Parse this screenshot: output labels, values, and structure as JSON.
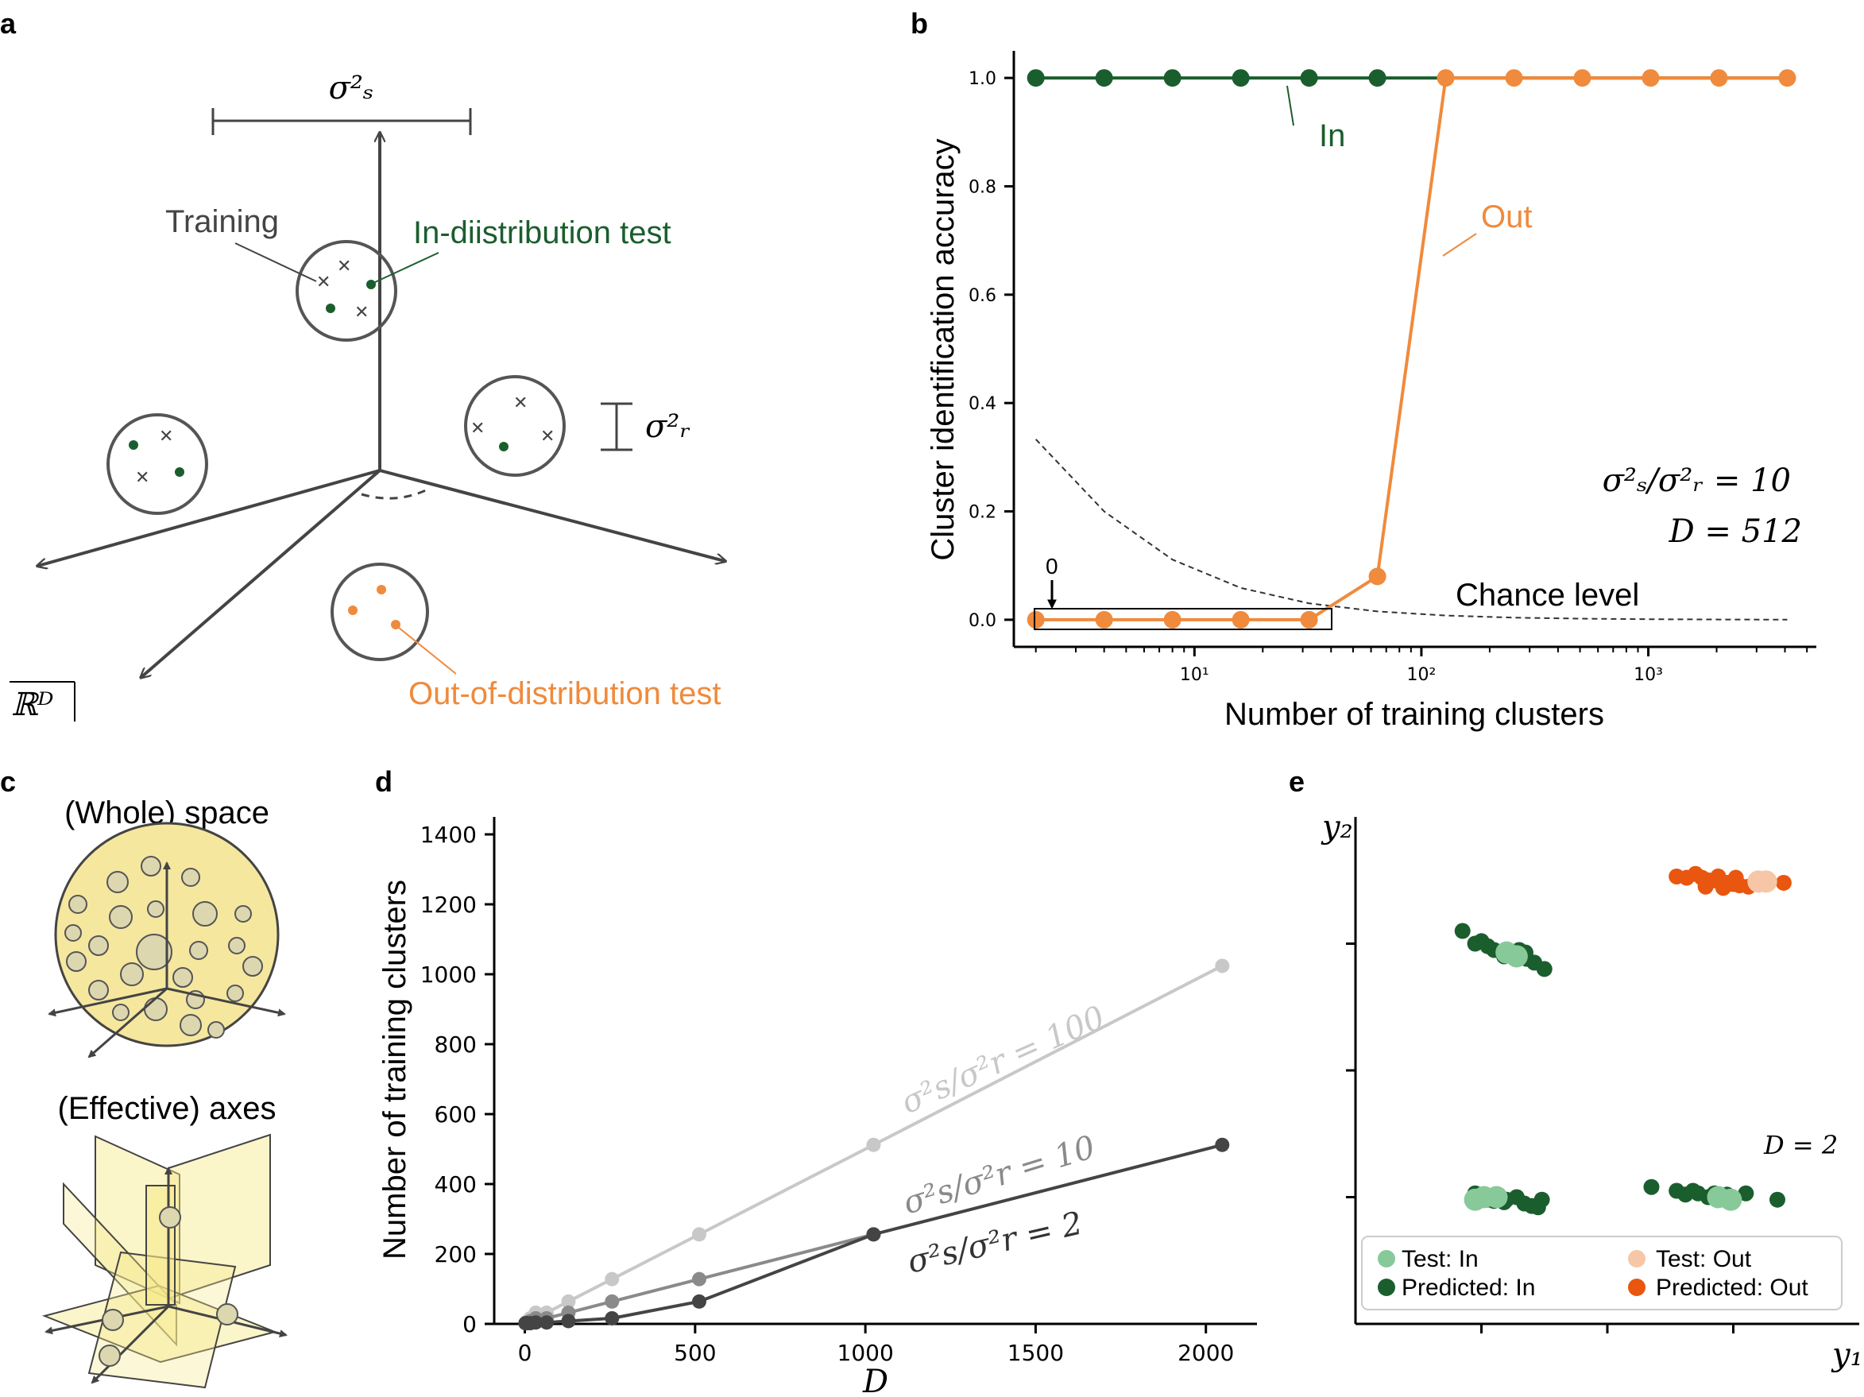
{
  "panel_labels": {
    "a": "a",
    "b": "b",
    "c": "c",
    "d": "d",
    "e": "e"
  },
  "colors": {
    "in": "#1b5e2e",
    "out": "#f08a3c",
    "out_dark": "#e8560f",
    "test_in": "#88c999",
    "test_out": "#f7c6a6",
    "axis": "#000000",
    "diagram": "#444444",
    "chance": "#333333",
    "d_light": "#c8c8c8",
    "d_mid": "#8a8a8a",
    "d_dark": "#444444",
    "sphere_fill": "#f5e79e",
    "plane_fill": "#f7e98a"
  },
  "panel_a": {
    "sigma_s": "σ²ₛ",
    "sigma_r": "σ²ᵣ",
    "training": "Training",
    "in_test": "In-diistribution test",
    "out_test": "Out-of-distribution test",
    "space": "ℝᴰ"
  },
  "chart_data": [
    {
      "id": "b",
      "type": "line",
      "xscale": "log",
      "xlabel": "Number of training clusters",
      "ylabel": "Cluster identification accuracy",
      "xlim": [
        1.6,
        5500
      ],
      "ylim": [
        -0.05,
        1.05
      ],
      "yticks": [
        "0.0",
        "0.2",
        "0.4",
        "0.6",
        "0.8",
        "1.0"
      ],
      "ytick_values": [
        0.0,
        0.2,
        0.4,
        0.6,
        0.8,
        1.0
      ],
      "xticks": [
        "10¹",
        "10²",
        "10³"
      ],
      "xtick_values": [
        10,
        100,
        1000
      ],
      "series": [
        {
          "name": "In",
          "x": [
            2,
            4,
            8,
            16,
            32,
            64
          ],
          "values": [
            1.0,
            1.0,
            1.0,
            1.0,
            1.0,
            1.0
          ],
          "line_to_x": 4096
        },
        {
          "name": "Out",
          "x": [
            2,
            4,
            8,
            16,
            32,
            64,
            128,
            256,
            512,
            1024,
            2048,
            4096
          ],
          "values": [
            0.0,
            0.0,
            0.0,
            0.0,
            0.0,
            0.08,
            1.0,
            1.0,
            1.0,
            1.0,
            1.0,
            1.0
          ]
        },
        {
          "name": "Chance level",
          "style": "dashed",
          "x": [
            2,
            4,
            8,
            16,
            32,
            64,
            128,
            256,
            512,
            1024,
            2048,
            4096
          ],
          "values": [
            0.333,
            0.2,
            0.111,
            0.0588,
            0.0303,
            0.0154,
            0.0078,
            0.0039,
            0.002,
            0.001,
            0.0005,
            0.0002
          ]
        }
      ],
      "annotations": {
        "in_label": "In",
        "out_label": "Out",
        "chance_label": "Chance level",
        "zero_label": "0",
        "ratio": "σ²ₛ/σ²ᵣ = 10",
        "dim": "D = 512"
      }
    },
    {
      "id": "d",
      "type": "line",
      "xlabel": "D",
      "ylabel": "Number of training clusters",
      "xlim": [
        -90,
        2150
      ],
      "ylim": [
        0,
        1450
      ],
      "xticks": [
        "0",
        "500",
        "1000",
        "1500",
        "2000"
      ],
      "xtick_values": [
        0,
        500,
        1000,
        1500,
        2000
      ],
      "yticks": [
        "0",
        "200",
        "400",
        "600",
        "800",
        "1000",
        "1200",
        "1400"
      ],
      "ytick_values": [
        0,
        200,
        400,
        600,
        800,
        1000,
        1200,
        1400
      ],
      "series": [
        {
          "name": "σ²s/σ²r = 100",
          "x": [
            2,
            4,
            8,
            16,
            32,
            64,
            128,
            256,
            512,
            1024,
            2048
          ],
          "values": [
            2,
            4,
            8,
            16,
            32,
            32,
            64,
            128,
            256,
            512,
            1024
          ]
        },
        {
          "name": "σ²s/σ²r = 10",
          "x": [
            2,
            4,
            8,
            16,
            32,
            64,
            128,
            256,
            512,
            1024
          ],
          "values": [
            2,
            2,
            4,
            8,
            16,
            16,
            32,
            64,
            128,
            256
          ]
        },
        {
          "name": "σ²s/σ²r = 2",
          "x": [
            2,
            4,
            8,
            16,
            32,
            64,
            128,
            256,
            512,
            1024,
            2048
          ],
          "values": [
            2,
            2,
            2,
            2,
            4,
            4,
            8,
            16,
            64,
            256,
            512
          ]
        }
      ],
      "labels": {
        "s100": "σ²s/σ²r = 100",
        "s10": "σ²s/σ²r = 10",
        "s2": "σ²s/σ²r = 2"
      }
    },
    {
      "id": "e",
      "type": "scatter",
      "xlabel": "y₁",
      "ylabel": "y₂",
      "xlim": [
        0,
        4
      ],
      "ylim": [
        0,
        4
      ],
      "annotation": "D = 2",
      "legend": {
        "test_in": "Test: In",
        "test_out": "Test: Out",
        "pred_in": "Predicted: In",
        "pred_out": "Predicted: Out"
      },
      "series": [
        {
          "name": "Predicted: In",
          "points": [
            [
              0.85,
              3.1
            ],
            [
              0.95,
              3.0
            ],
            [
              1.05,
              2.98
            ],
            [
              1.1,
              2.95
            ],
            [
              1.18,
              2.9
            ],
            [
              1.25,
              2.9
            ],
            [
              1.3,
              2.95
            ],
            [
              1.36,
              2.88
            ],
            [
              1.42,
              2.85
            ],
            [
              1.5,
              2.8
            ],
            [
              1.35,
              2.93
            ],
            [
              1.2,
              2.95
            ],
            [
              1.0,
              3.02
            ],
            [
              0.95,
              1.03
            ],
            [
              1.05,
              0.98
            ],
            [
              1.1,
              0.97
            ],
            [
              1.2,
              0.98
            ],
            [
              1.28,
              1.0
            ],
            [
              1.34,
              0.95
            ],
            [
              1.4,
              0.93
            ],
            [
              1.45,
              0.92
            ],
            [
              1.48,
              0.98
            ],
            [
              1.18,
              0.96
            ],
            [
              2.35,
              1.08
            ],
            [
              2.55,
              1.05
            ],
            [
              2.62,
              1.02
            ],
            [
              2.72,
              1.03
            ],
            [
              2.8,
              1.0
            ],
            [
              2.85,
              1.03
            ],
            [
              2.95,
              1.02
            ],
            [
              3.1,
              1.03
            ],
            [
              3.35,
              0.98
            ],
            [
              2.68,
              1.05
            ]
          ]
        },
        {
          "name": "Test: In",
          "points": [
            [
              1.2,
              2.93
            ],
            [
              1.28,
              2.9
            ],
            [
              0.95,
              0.98
            ],
            [
              1.02,
              1.0
            ],
            [
              1.12,
              1.0
            ],
            [
              2.88,
              1.0
            ],
            [
              2.98,
              0.98
            ]
          ]
        },
        {
          "name": "Predicted: Out",
          "points": [
            [
              2.55,
              3.53
            ],
            [
              2.63,
              3.52
            ],
            [
              2.7,
              3.55
            ],
            [
              2.75,
              3.52
            ],
            [
              2.8,
              3.5
            ],
            [
              2.85,
              3.5
            ],
            [
              2.9,
              3.48
            ],
            [
              2.95,
              3.48
            ],
            [
              3.0,
              3.47
            ],
            [
              3.05,
              3.46
            ],
            [
              3.12,
              3.45
            ],
            [
              3.18,
              3.5
            ],
            [
              3.28,
              3.48
            ],
            [
              3.4,
              3.48
            ],
            [
              2.78,
              3.45
            ],
            [
              2.92,
              3.44
            ],
            [
              3.02,
              3.52
            ],
            [
              2.88,
              3.53
            ]
          ]
        },
        {
          "name": "Test: Out",
          "points": [
            [
              3.2,
              3.49
            ],
            [
              3.26,
              3.49
            ]
          ]
        }
      ]
    }
  ],
  "panel_c": {
    "whole": "(Whole) space",
    "effective": "(Effective) axes"
  }
}
